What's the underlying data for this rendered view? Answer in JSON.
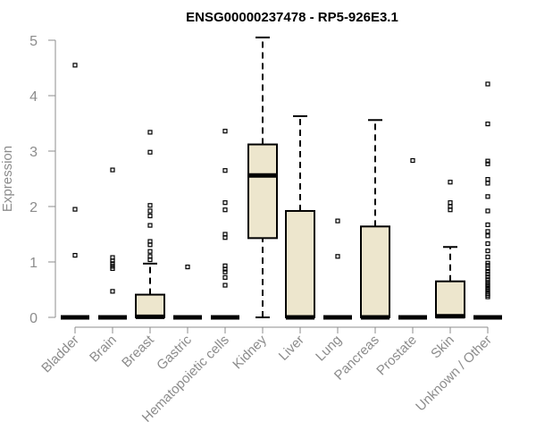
{
  "chart_data": {
    "type": "box",
    "title": "ENSG00000237478 - RP5-926E3.1",
    "xlabel": "",
    "ylabel": "Expression",
    "ylim": [
      0,
      5
    ],
    "yticks": [
      "0",
      "1",
      "2",
      "3",
      "4",
      "5"
    ],
    "colors": {
      "box_fill": "#ede6cd",
      "stroke": "#000000",
      "axis": "#8c8c8c"
    },
    "categories": [
      "Bladder",
      "Brain",
      "Breast",
      "Gastric",
      "Hematopoietic cells",
      "Kidney",
      "Liver",
      "Lung",
      "Pancreas",
      "Prostate",
      "Skin",
      "Unknown / Other"
    ],
    "boxes": [
      {
        "min": 0,
        "q1": 0,
        "median": 0,
        "q3": 0,
        "max": 0,
        "outliers": [
          4.55,
          1.95,
          1.12
        ]
      },
      {
        "min": 0,
        "q1": 0,
        "median": 0,
        "q3": 0,
        "max": 0,
        "outliers": [
          2.66,
          1.08,
          1.02,
          0.97,
          0.92,
          0.88,
          0.47
        ]
      },
      {
        "min": 0,
        "q1": 0,
        "median": 0.01,
        "q3": 0.41,
        "max": 0.97,
        "outliers": [
          3.34,
          2.98,
          2.02,
          1.92,
          1.83,
          1.66,
          1.37,
          1.31,
          1.19,
          1.1,
          1.04
        ]
      },
      {
        "min": 0,
        "q1": 0,
        "median": 0,
        "q3": 0,
        "max": 0,
        "outliers": [
          0.91
        ]
      },
      {
        "min": 0,
        "q1": 0,
        "median": 0,
        "q3": 0,
        "max": 0,
        "outliers": [
          3.36,
          2.65,
          2.07,
          1.94,
          1.5,
          1.44,
          0.93,
          0.87,
          0.82,
          0.72,
          0.58
        ]
      },
      {
        "min": 0,
        "q1": 1.43,
        "median": 2.56,
        "q3": 3.12,
        "max": 5.05,
        "outliers": []
      },
      {
        "min": 0,
        "q1": 0,
        "median": 0,
        "q3": 1.92,
        "max": 3.63,
        "outliers": []
      },
      {
        "min": 0,
        "q1": 0,
        "median": 0,
        "q3": 0,
        "max": 0,
        "outliers": [
          1.74,
          1.1
        ]
      },
      {
        "min": 0,
        "q1": 0,
        "median": 0,
        "q3": 1.64,
        "max": 3.56,
        "outliers": []
      },
      {
        "min": 0,
        "q1": 0,
        "median": 0,
        "q3": 0,
        "max": 0,
        "outliers": [
          2.83
        ]
      },
      {
        "min": 0,
        "q1": 0,
        "median": 0.02,
        "q3": 0.65,
        "max": 1.27,
        "outliers": [
          2.44,
          2.07,
          2.0,
          1.94
        ]
      },
      {
        "min": 0,
        "q1": 0,
        "median": 0,
        "q3": 0,
        "max": 0,
        "outliers": [
          4.21,
          3.49,
          2.82,
          2.77,
          2.49,
          2.42,
          2.18,
          1.92,
          1.67,
          1.55,
          1.47,
          1.33,
          1.2,
          1.09,
          0.98,
          0.94,
          0.88,
          0.83,
          0.78,
          0.73,
          0.68,
          0.63,
          0.59,
          0.55,
          0.51,
          0.47,
          0.43,
          0.4,
          0.37
        ]
      }
    ]
  }
}
